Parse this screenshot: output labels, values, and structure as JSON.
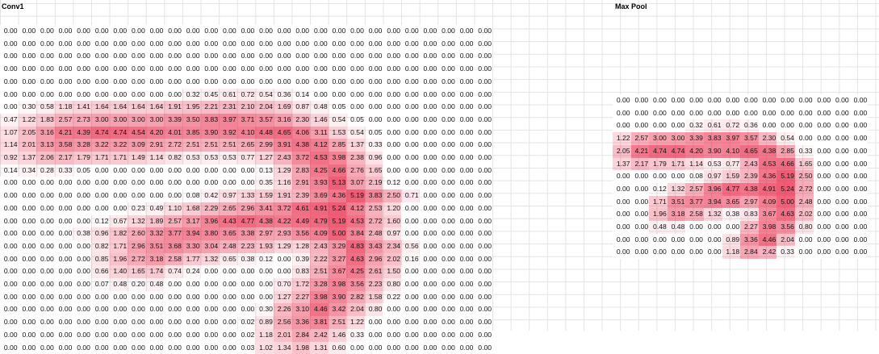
{
  "labels": {
    "conv": "Conv1",
    "pool": "Max Pool"
  },
  "heat_color": "#e8193c",
  "conv1": [
    [
      "0.00",
      "0.00",
      "0.00",
      "0.00",
      "0.00",
      "0.00",
      "0.00",
      "0.00",
      "0.00",
      "0.00",
      "0.00",
      "0.00",
      "0.00",
      "0.00",
      "0.00",
      "0.00",
      "0.00",
      "0.00",
      "0.00",
      "0.00",
      "0.00",
      "0.00",
      "0.00",
      "0.00",
      "0.00",
      "0.00",
      "0.00"
    ],
    [
      "0.00",
      "0.00",
      "0.00",
      "0.00",
      "0.00",
      "0.00",
      "0.00",
      "0.00",
      "0.00",
      "0.00",
      "0.00",
      "0.00",
      "0.00",
      "0.00",
      "0.00",
      "0.00",
      "0.00",
      "0.00",
      "0.00",
      "0.00",
      "0.00",
      "0.00",
      "0.00",
      "0.00",
      "0.00",
      "0.00",
      "0.00"
    ],
    [
      "0.00",
      "0.00",
      "0.00",
      "0.00",
      "0.00",
      "0.00",
      "0.00",
      "0.00",
      "0.00",
      "0.00",
      "0.00",
      "0.00",
      "0.00",
      "0.00",
      "0.00",
      "0.00",
      "0.00",
      "0.00",
      "0.00",
      "0.00",
      "0.00",
      "0.00",
      "0.00",
      "0.00",
      "0.00",
      "0.00",
      "0.00"
    ],
    [
      "0.00",
      "0.00",
      "0.00",
      "0.00",
      "0.00",
      "0.00",
      "0.00",
      "0.00",
      "0.00",
      "0.00",
      "0.00",
      "0.00",
      "0.00",
      "0.00",
      "0.00",
      "0.00",
      "0.00",
      "0.00",
      "0.00",
      "0.00",
      "0.00",
      "0.00",
      "0.00",
      "0.00",
      "0.00",
      "0.00",
      "0.00"
    ],
    [
      "0.00",
      "0.00",
      "0.00",
      "0.00",
      "0.00",
      "0.00",
      "0.00",
      "0.00",
      "0.00",
      "0.00",
      "0.00",
      "0.00",
      "0.00",
      "0.00",
      "0.00",
      "0.00",
      "0.00",
      "0.00",
      "0.00",
      "0.00",
      "0.00",
      "0.00",
      "0.00",
      "0.00",
      "0.00",
      "0.00",
      "0.00"
    ],
    [
      "0.00",
      "0.00",
      "0.00",
      "0.00",
      "0.00",
      "0.00",
      "0.00",
      "0.00",
      "0.00",
      "0.00",
      "0.32",
      "0.45",
      "0.61",
      "0.72",
      "0.54",
      "0.36",
      "0.14",
      "0.00",
      "0.00",
      "0.00",
      "0.00",
      "0.00",
      "0.00",
      "0.00",
      "0.00",
      "0.00",
      "0.00"
    ],
    [
      "0.00",
      "0.30",
      "0.58",
      "1.18",
      "1.41",
      "1.64",
      "1.64",
      "1.64",
      "1.64",
      "1.91",
      "1.95",
      "2.21",
      "2.31",
      "2.10",
      "2.04",
      "1.69",
      "0.87",
      "0.48",
      "0.05",
      "0.00",
      "0.00",
      "0.00",
      "0.00",
      "0.00",
      "0.00",
      "0.00",
      "0.00"
    ],
    [
      "0.47",
      "1.22",
      "1.83",
      "2.57",
      "2.73",
      "3.00",
      "3.00",
      "3.00",
      "3.00",
      "3.39",
      "3.50",
      "3.83",
      "3.97",
      "3.71",
      "3.57",
      "3.16",
      "2.30",
      "1.46",
      "0.54",
      "0.05",
      "0.00",
      "0.00",
      "0.00",
      "0.00",
      "0.00",
      "0.00",
      "0.00"
    ],
    [
      "1.07",
      "2.05",
      "3.16",
      "4.21",
      "4.39",
      "4.74",
      "4.74",
      "4.54",
      "4.20",
      "4.01",
      "3.85",
      "3.90",
      "3.92",
      "4.10",
      "4.48",
      "4.65",
      "4.06",
      "3.11",
      "1.53",
      "0.54",
      "0.05",
      "0.00",
      "0.00",
      "0.00",
      "0.00",
      "0.00",
      "0.00"
    ],
    [
      "1.14",
      "2.01",
      "3.13",
      "3.58",
      "3.28",
      "3.22",
      "3.22",
      "3.09",
      "2.91",
      "2.72",
      "2.51",
      "2.51",
      "2.51",
      "2.65",
      "2.99",
      "3.91",
      "4.38",
      "4.12",
      "2.85",
      "1.37",
      "0.33",
      "0.00",
      "0.00",
      "0.00",
      "0.00",
      "0.00",
      "0.00"
    ],
    [
      "0.92",
      "1.37",
      "2.06",
      "2.17",
      "1.79",
      "1.71",
      "1.71",
      "1.49",
      "1.14",
      "0.82",
      "0.53",
      "0.53",
      "0.53",
      "0.77",
      "1.27",
      "2.43",
      "3.72",
      "4.53",
      "3.98",
      "2.38",
      "0.96",
      "0.00",
      "0.00",
      "0.00",
      "0.00",
      "0.00",
      "0.00"
    ],
    [
      "0.14",
      "0.34",
      "0.28",
      "0.33",
      "0.05",
      "0.00",
      "0.00",
      "0.00",
      "0.00",
      "0.00",
      "0.00",
      "0.00",
      "0.00",
      "0.00",
      "0.13",
      "1.29",
      "2.83",
      "4.25",
      "4.66",
      "2.76",
      "1.65",
      "0.00",
      "0.00",
      "0.00",
      "0.00",
      "0.00",
      "0.00"
    ],
    [
      "0.00",
      "0.00",
      "0.00",
      "0.00",
      "0.00",
      "0.00",
      "0.00",
      "0.00",
      "0.00",
      "0.00",
      "0.00",
      "0.00",
      "0.00",
      "0.00",
      "0.35",
      "1.16",
      "2.91",
      "3.93",
      "5.13",
      "3.07",
      "2.19",
      "0.12",
      "0.00",
      "0.00",
      "0.00",
      "0.00",
      "0.00"
    ],
    [
      "0.00",
      "0.00",
      "0.00",
      "0.00",
      "0.00",
      "0.00",
      "0.00",
      "0.00",
      "0.00",
      "0.00",
      "0.08",
      "0.42",
      "0.97",
      "1.33",
      "1.59",
      "1.91",
      "2.39",
      "3.69",
      "4.36",
      "5.19",
      "3.83",
      "2.50",
      "0.71",
      "0.00",
      "0.00",
      "0.00",
      "0.00"
    ],
    [
      "0.00",
      "0.00",
      "0.00",
      "0.00",
      "0.00",
      "0.00",
      "0.00",
      "0.23",
      "0.49",
      "1.10",
      "1.68",
      "2.29",
      "2.65",
      "2.96",
      "3.41",
      "3.72",
      "4.61",
      "4.91",
      "5.24",
      "4.12",
      "2.53",
      "1.20",
      "0.00",
      "0.00",
      "0.00",
      "0.00",
      "0.00"
    ],
    [
      "0.00",
      "0.00",
      "0.00",
      "0.00",
      "0.00",
      "0.12",
      "0.67",
      "1.32",
      "1.89",
      "2.57",
      "3.17",
      "3.96",
      "4.43",
      "4.77",
      "4.38",
      "4.22",
      "4.49",
      "4.79",
      "5.19",
      "4.53",
      "2.72",
      "1.60",
      "0.00",
      "0.00",
      "0.00",
      "0.00",
      "0.00"
    ],
    [
      "0.00",
      "0.00",
      "0.00",
      "0.00",
      "0.38",
      "0.96",
      "1.82",
      "2.60",
      "3.32",
      "3.77",
      "3.94",
      "3.80",
      "3.65",
      "3.38",
      "2.97",
      "2.93",
      "3.56",
      "4.09",
      "5.00",
      "3.84",
      "2.48",
      "0.97",
      "0.00",
      "0.00",
      "0.00",
      "0.00",
      "0.00"
    ],
    [
      "0.00",
      "0.00",
      "0.00",
      "0.00",
      "0.00",
      "0.82",
      "1.71",
      "2.96",
      "3.51",
      "3.68",
      "3.30",
      "3.04",
      "2.48",
      "2.23",
      "1.93",
      "1.29",
      "1.28",
      "2.43",
      "3.29",
      "4.83",
      "3.43",
      "2.34",
      "0.56",
      "0.00",
      "0.00",
      "0.00",
      "0.00"
    ],
    [
      "0.00",
      "0.00",
      "0.00",
      "0.00",
      "0.00",
      "0.85",
      "1.96",
      "2.72",
      "3.18",
      "2.58",
      "1.77",
      "1.32",
      "0.65",
      "0.38",
      "0.12",
      "0.00",
      "0.39",
      "2.22",
      "3.27",
      "4.63",
      "2.96",
      "2.02",
      "0.16",
      "0.00",
      "0.00",
      "0.00",
      "0.00"
    ],
    [
      "0.00",
      "0.00",
      "0.00",
      "0.00",
      "0.00",
      "0.66",
      "1.40",
      "1.65",
      "1.74",
      "0.74",
      "0.24",
      "0.00",
      "0.00",
      "0.00",
      "0.00",
      "0.00",
      "0.83",
      "2.51",
      "3.67",
      "4.25",
      "2.61",
      "1.50",
      "0.00",
      "0.00",
      "0.00",
      "0.00",
      "0.00"
    ],
    [
      "0.00",
      "0.00",
      "0.00",
      "0.00",
      "0.00",
      "0.07",
      "0.48",
      "0.20",
      "0.48",
      "0.00",
      "0.00",
      "0.00",
      "0.00",
      "0.00",
      "0.00",
      "0.70",
      "1.72",
      "3.28",
      "3.98",
      "3.56",
      "2.23",
      "0.80",
      "0.00",
      "0.00",
      "0.00",
      "0.00",
      "0.00"
    ],
    [
      "0.00",
      "0.00",
      "0.00",
      "0.00",
      "0.00",
      "0.00",
      "0.00",
      "0.00",
      "0.00",
      "0.00",
      "0.00",
      "0.00",
      "0.00",
      "0.00",
      "0.00",
      "1.27",
      "2.27",
      "3.98",
      "3.90",
      "2.82",
      "1.58",
      "0.22",
      "0.00",
      "0.00",
      "0.00",
      "0.00",
      "0.00"
    ],
    [
      "0.00",
      "0.00",
      "0.00",
      "0.00",
      "0.00",
      "0.00",
      "0.00",
      "0.00",
      "0.00",
      "0.00",
      "0.00",
      "0.00",
      "0.00",
      "0.00",
      "0.30",
      "2.26",
      "3.10",
      "4.46",
      "3.42",
      "2.04",
      "0.80",
      "0.00",
      "0.00",
      "0.00",
      "0.00",
      "0.00",
      "0.00"
    ],
    [
      "0.00",
      "0.00",
      "0.00",
      "0.00",
      "0.00",
      "0.00",
      "0.00",
      "0.00",
      "0.00",
      "0.00",
      "0.00",
      "0.00",
      "0.00",
      "0.02",
      "0.89",
      "2.56",
      "3.36",
      "3.81",
      "2.51",
      "1.22",
      "0.00",
      "0.00",
      "0.00",
      "0.00",
      "0.00",
      "0.00",
      "0.00"
    ],
    [
      "0.00",
      "0.00",
      "0.00",
      "0.00",
      "0.00",
      "0.00",
      "0.00",
      "0.00",
      "0.00",
      "0.00",
      "0.00",
      "0.00",
      "0.00",
      "0.02",
      "1.18",
      "2.01",
      "2.84",
      "2.42",
      "1.46",
      "0.33",
      "0.00",
      "0.00",
      "0.00",
      "0.00",
      "0.00",
      "0.00",
      "0.00"
    ],
    [
      "0.00",
      "0.00",
      "0.00",
      "0.00",
      "0.00",
      "0.00",
      "0.00",
      "0.00",
      "0.00",
      "0.00",
      "0.00",
      "0.00",
      "0.00",
      "0.03",
      "1.02",
      "1.34",
      "1.98",
      "1.31",
      "0.60",
      "0.00",
      "0.00",
      "0.00",
      "0.00",
      "0.00",
      "0.00",
      "0.00",
      "0.00"
    ]
  ],
  "maxpool": [
    [
      "0.00",
      "0.00",
      "0.00",
      "0.00",
      "0.00",
      "0.00",
      "0.00",
      "0.00",
      "0.00",
      "0.00",
      "0.00",
      "0.00",
      "0.00",
      "0.00"
    ],
    [
      "0.00",
      "0.00",
      "0.00",
      "0.00",
      "0.00",
      "0.00",
      "0.00",
      "0.00",
      "0.00",
      "0.00",
      "0.00",
      "0.00",
      "0.00",
      "0.00"
    ],
    [
      "0.00",
      "0.00",
      "0.00",
      "0.00",
      "0.32",
      "0.61",
      "0.72",
      "0.36",
      "0.00",
      "0.00",
      "0.00",
      "0.00",
      "0.00",
      "0.00"
    ],
    [
      "1.22",
      "2.57",
      "3.00",
      "3.00",
      "3.39",
      "3.83",
      "3.97",
      "3.57",
      "2.30",
      "0.54",
      "0.00",
      "0.00",
      "0.00",
      "0.00"
    ],
    [
      "2.05",
      "4.21",
      "4.74",
      "4.74",
      "4.20",
      "3.90",
      "4.10",
      "4.65",
      "4.38",
      "2.85",
      "0.33",
      "0.00",
      "0.00",
      "0.00"
    ],
    [
      "1.37",
      "2.17",
      "1.79",
      "1.71",
      "1.14",
      "0.53",
      "0.77",
      "2.43",
      "4.53",
      "4.66",
      "1.65",
      "0.00",
      "0.00",
      "0.00"
    ],
    [
      "0.00",
      "0.00",
      "0.00",
      "0.00",
      "0.08",
      "0.97",
      "1.59",
      "2.39",
      "4.36",
      "5.19",
      "2.50",
      "0.00",
      "0.00",
      "0.00"
    ],
    [
      "0.00",
      "0.00",
      "0.12",
      "1.32",
      "2.57",
      "3.96",
      "4.77",
      "4.38",
      "4.91",
      "5.24",
      "2.72",
      "0.00",
      "0.00",
      "0.00"
    ],
    [
      "0.00",
      "0.00",
      "1.71",
      "3.51",
      "3.77",
      "3.94",
      "3.65",
      "2.97",
      "4.09",
      "5.00",
      "2.48",
      "0.00",
      "0.00",
      "0.00"
    ],
    [
      "0.00",
      "0.00",
      "1.96",
      "3.18",
      "2.58",
      "1.32",
      "0.38",
      "0.83",
      "3.67",
      "4.63",
      "2.02",
      "0.00",
      "0.00",
      "0.00"
    ],
    [
      "0.00",
      "0.00",
      "0.48",
      "0.48",
      "0.00",
      "0.00",
      "0.00",
      "2.27",
      "3.98",
      "3.56",
      "0.80",
      "0.00",
      "0.00",
      "0.00"
    ],
    [
      "0.00",
      "0.00",
      "0.00",
      "0.00",
      "0.00",
      "0.00",
      "0.89",
      "3.36",
      "4.46",
      "2.04",
      "0.00",
      "0.00",
      "0.00",
      "0.00"
    ],
    [
      "0.00",
      "0.00",
      "0.00",
      "0.00",
      "0.00",
      "0.00",
      "1.18",
      "2.84",
      "2.42",
      "0.33",
      "0.00",
      "0.00",
      "0.00",
      "0.00"
    ]
  ]
}
